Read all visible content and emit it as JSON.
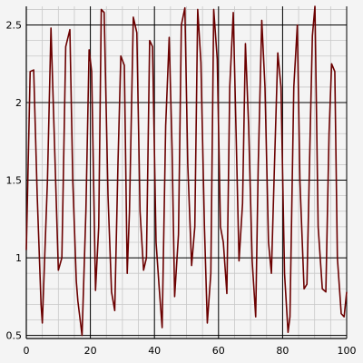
{
  "chart_data": {
    "type": "line",
    "xlim": [
      0,
      100
    ],
    "ylim": [
      0.48,
      2.62
    ],
    "grid": true,
    "x_ticks": [
      0,
      20,
      40,
      60,
      80,
      100
    ],
    "x_tick_labels": [
      "0",
      "20",
      "40",
      "60",
      "80",
      "100"
    ],
    "y_ticks": [
      0.5,
      1,
      1.5,
      2,
      2.5
    ],
    "y_tick_labels": [
      "0.5",
      "1",
      "1.5",
      "2",
      "2.5"
    ],
    "series": [
      {
        "color": "#6b0000",
        "x": [
          0,
          1.2,
          2.3,
          3.4,
          4.6,
          5.0,
          6.6,
          7.7,
          9.0,
          10.0,
          11.1,
          12.3,
          13.6,
          14.5,
          15.6,
          16.1,
          17.4,
          18.6,
          19.6,
          20.4,
          21.6,
          22.6,
          23.4,
          24.3,
          25.5,
          26.6,
          27.6,
          28.6,
          29.5,
          30.6,
          31.5,
          32.2,
          33.4,
          34.5,
          35.5,
          36.6,
          37.5,
          38.5,
          39.4,
          40.5,
          41.5,
          42.4,
          43.5,
          44.6,
          45.5,
          46.3,
          47.5,
          48.4,
          49.5,
          50.4,
          51.6,
          52.6,
          53.5,
          54.5,
          55.6,
          56.5,
          57.6,
          58.5,
          59.6,
          60.6,
          61.5,
          62.6,
          63.5,
          64.6,
          65.6,
          66.4,
          67.5,
          68.4,
          69.4,
          70.5,
          71.6,
          72.4,
          73.5,
          74.5,
          75.6,
          76.5,
          77.4,
          78.5,
          79.5,
          80.6,
          81.7,
          82.3,
          83.5,
          84.6,
          85.4,
          86.7,
          87.6,
          88.5,
          89.3,
          90.1,
          91.1,
          92.4,
          93.5,
          94.5,
          95.3,
          96.3,
          97.1,
          98.3,
          99.2,
          100
        ],
        "y": [
          1.05,
          2.2,
          2.21,
          1.4,
          0.7,
          0.58,
          1.5,
          2.48,
          1.6,
          0.92,
          1.0,
          2.36,
          2.47,
          1.5,
          0.85,
          0.72,
          0.5,
          1.3,
          2.34,
          2.2,
          0.79,
          1.2,
          2.6,
          2.58,
          1.4,
          0.78,
          0.66,
          1.6,
          2.3,
          2.24,
          0.9,
          1.3,
          2.55,
          2.45,
          1.3,
          0.92,
          1.0,
          2.4,
          2.36,
          1.1,
          0.8,
          0.55,
          1.85,
          2.42,
          1.7,
          0.75,
          1.15,
          2.5,
          2.61,
          1.6,
          0.95,
          1.2,
          2.6,
          2.26,
          1.2,
          0.58,
          0.9,
          2.6,
          2.28,
          1.2,
          1.1,
          0.77,
          2.1,
          2.58,
          1.7,
          0.98,
          1.35,
          2.38,
          1.85,
          0.98,
          0.62,
          1.6,
          2.53,
          2.1,
          1.1,
          0.9,
          1.55,
          2.32,
          2.1,
          0.9,
          0.52,
          0.62,
          2.1,
          2.5,
          1.5,
          0.8,
          0.83,
          1.7,
          2.43,
          2.62,
          1.2,
          0.8,
          0.78,
          1.8,
          2.25,
          2.2,
          1.0,
          0.64,
          0.62,
          0.78
        ]
      }
    ]
  }
}
